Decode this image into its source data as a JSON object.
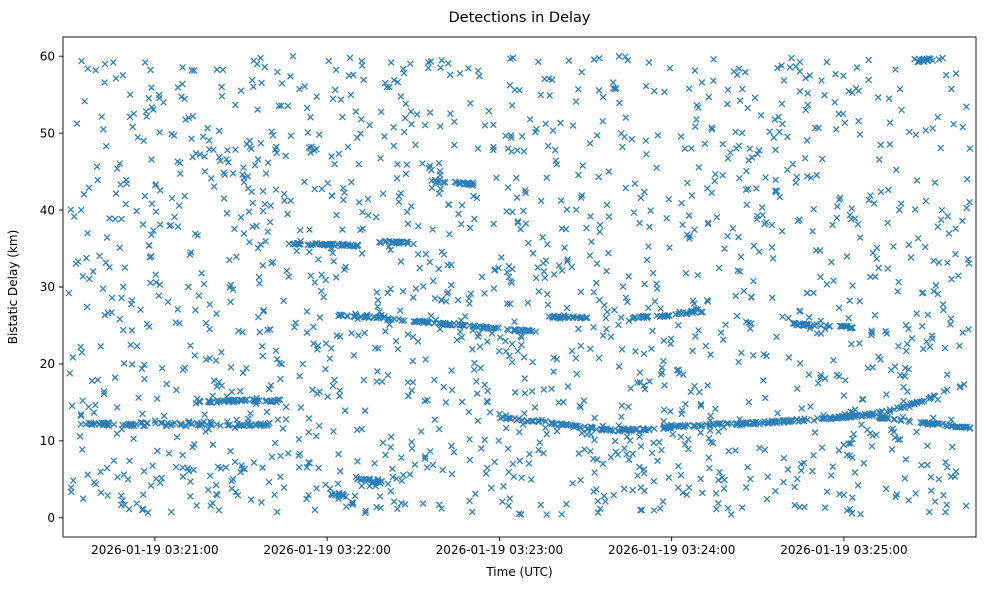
{
  "chart_data": {
    "type": "scatter",
    "title": "Detections in Delay",
    "xlabel": "Time (UTC)",
    "ylabel": "Bistatic Delay (km)",
    "legend": "none",
    "grid": false,
    "marker": "x",
    "marker_color": "#1f77b4",
    "x_axis_unit": "seconds relative to 2026-01-19 03:20:30 UTC",
    "xlim": [
      -2,
      316
    ],
    "ylim": [
      -2.5,
      62.5
    ],
    "x_ticks": [
      {
        "t": 30,
        "label": "2026-01-19 03:21:00"
      },
      {
        "t": 90,
        "label": "2026-01-19 03:22:00"
      },
      {
        "t": 150,
        "label": "2026-01-19 03:23:00"
      },
      {
        "t": 210,
        "label": "2026-01-19 03:24:00"
      },
      {
        "t": 270,
        "label": "2026-01-19 03:25:00"
      }
    ],
    "y_ticks": [
      0,
      10,
      20,
      30,
      40,
      50,
      60
    ],
    "noise": {
      "count": 1650,
      "t_range": [
        0,
        314
      ],
      "y_range": [
        0.4,
        60.0
      ]
    },
    "tracks": [
      {
        "name": "band-12km-early",
        "points": [
          [
            3,
            12.25
          ],
          [
            35,
            12.1
          ],
          [
            70,
            12.2
          ]
        ],
        "count": 90,
        "y_jitter": 0.25
      },
      {
        "name": "band-15km",
        "points": [
          [
            44,
            15.0
          ],
          [
            62,
            15.3
          ],
          [
            74,
            15.2
          ]
        ],
        "count": 55,
        "y_jitter": 0.15
      },
      {
        "name": "band-35km-a",
        "points": [
          [
            78,
            35.6
          ],
          [
            101,
            35.4
          ]
        ],
        "count": 50,
        "y_jitter": 0.15
      },
      {
        "name": "band-35km-b",
        "points": [
          [
            108,
            35.9
          ],
          [
            121,
            35.7
          ]
        ],
        "count": 22,
        "y_jitter": 0.15
      },
      {
        "name": "track-26-to-24km",
        "points": [
          [
            93,
            26.4
          ],
          [
            120,
            25.6
          ],
          [
            150,
            24.6
          ]
        ],
        "count": 85,
        "y_jitter": 0.15
      },
      {
        "name": "segment-24km",
        "points": [
          [
            152,
            24.45
          ],
          [
            163,
            24.3
          ]
        ],
        "count": 22,
        "y_jitter": 0.12
      },
      {
        "name": "segment-26km-a",
        "points": [
          [
            167,
            26.1
          ],
          [
            181,
            26.0
          ]
        ],
        "count": 26,
        "y_jitter": 0.12
      },
      {
        "name": "segment-26km-b",
        "points": [
          [
            196,
            26.0
          ],
          [
            208,
            26.3
          ],
          [
            221,
            26.9
          ]
        ],
        "count": 36,
        "y_jitter": 0.15
      },
      {
        "name": "segment-25km-late",
        "points": [
          [
            252,
            25.2
          ],
          [
            273,
            24.75
          ]
        ],
        "count": 38,
        "y_jitter": 0.15
      },
      {
        "name": "main-low-track",
        "points": [
          [
            150,
            13.0
          ],
          [
            166,
            12.5
          ],
          [
            178,
            11.8
          ],
          [
            189,
            11.4
          ],
          [
            200,
            11.5
          ],
          [
            214,
            11.9
          ],
          [
            238,
            12.3
          ],
          [
            260,
            12.8
          ],
          [
            280,
            13.4
          ],
          [
            294,
            14.7
          ],
          [
            305,
            16.4
          ],
          [
            312,
            17.3
          ]
        ],
        "count": 270,
        "y_jitter": 0.18
      },
      {
        "name": "low-track-branch",
        "points": [
          [
            282,
            13.1
          ],
          [
            298,
            12.3
          ],
          [
            314,
            11.75
          ]
        ],
        "count": 60,
        "y_jitter": 0.15
      },
      {
        "name": "cluster-59km-late",
        "points": [
          [
            293,
            59.4
          ],
          [
            301,
            59.6
          ]
        ],
        "count": 16,
        "y_jitter": 0.3
      },
      {
        "name": "cluster-5km",
        "points": [
          [
            100,
            5.2
          ],
          [
            110,
            4.7
          ]
        ],
        "count": 22,
        "y_jitter": 0.3
      },
      {
        "name": "cluster-44km",
        "points": [
          [
            126,
            43.8
          ],
          [
            141,
            43.4
          ]
        ],
        "count": 24,
        "y_jitter": 0.2
      },
      {
        "name": "cluster-3km",
        "points": [
          [
            91,
            3.1
          ],
          [
            97,
            2.9
          ]
        ],
        "count": 14,
        "y_jitter": 0.2
      }
    ],
    "colors": {
      "marker": "#1f77b4",
      "axes": "#000000",
      "background": "#ffffff"
    }
  }
}
